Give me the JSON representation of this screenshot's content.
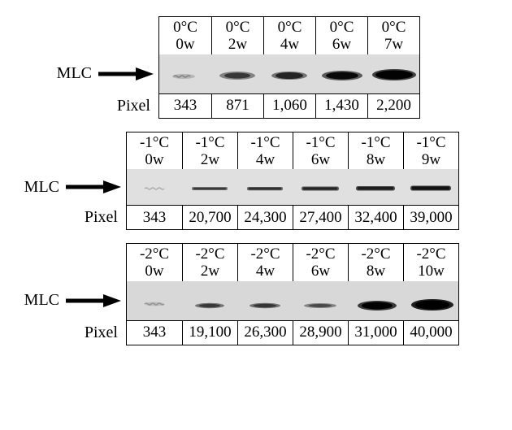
{
  "panels": [
    {
      "temp_label": "0°C",
      "weeks": [
        "0w",
        "2w",
        "4w",
        "6w",
        "7w"
      ],
      "pixel_values": [
        "343",
        "871",
        "1,060",
        "1,430",
        "2,200"
      ],
      "gel_bg": "#dcdcdc",
      "gel_height": 48,
      "left_label_width": 180,
      "lane_width": 64,
      "gel_svgs": [
        "<svg width='64' height='48'><g><ellipse cx='30' cy='27' rx='14' ry='3' fill='#7a7a7a' opacity='0.4'/><path d='M18 27 q2 -2 4 0 q2 2 4 0 q2 -2 4 0 q2 2 4 0 q2 -2 4 0' stroke='#555' stroke-width='1.5' fill='none' opacity='0.55'/></g></svg>",
        "<svg width='64' height='48'><ellipse cx='32' cy='26' rx='22' ry='5' fill='#3a3a3a' opacity='0.55'/><ellipse cx='32' cy='26' rx='16' ry='3.5' fill='#1e1e1e' opacity='0.75'/></svg>",
        "<svg width='64' height='48'><ellipse cx='32' cy='26' rx='22' ry='5' fill='#2f2f2f' opacity='0.6'/><ellipse cx='32' cy='26' rx='17' ry='4' fill='#161616' opacity='0.85'/></svg>",
        "<svg width='64' height='48'><ellipse cx='33' cy='26' rx='25' ry='6' fill='#222' opacity='0.7'/><ellipse cx='33' cy='26' rx='20' ry='4.5' fill='#000' opacity='0.9'/></svg>",
        "<svg width='64' height='48'><ellipse cx='33' cy='25' rx='27' ry='7' fill='#1a1a1a' opacity='0.8'/><ellipse cx='33' cy='25' rx='23' ry='5.5' fill='#000' opacity='0.95'/></svg>"
      ]
    },
    {
      "temp_label": "-1°C",
      "weeks": [
        "0w",
        "2w",
        "4w",
        "6w",
        "8w",
        "9w"
      ],
      "pixel_values": [
        "343",
        "20,700",
        "24,300",
        "27,400",
        "32,400",
        "39,000"
      ],
      "gel_bg": "#e0e0e0",
      "gel_height": 44,
      "left_label_width": 140,
      "lane_width": 68,
      "gel_svgs": [
        "<svg width='68' height='44'><path d='M22 24 q2 -2 4 0 q2 2 4 0 q2 -2 4 0 q2 2 4 0 q2 -2 4 0 q2 2 4 0' stroke='#777' stroke-width='1.4' fill='none' opacity='0.5'/></svg>",
        "<svg width='68' height='44'><rect x='12' y='22' width='44' height='4' rx='2' fill='#555' opacity='0.8'/><rect x='14' y='23' width='40' height='2.2' rx='1' fill='#333' opacity='0.9'/></svg>",
        "<svg width='68' height='44'><rect x='12' y='22' width='44' height='4.2' rx='2' fill='#4d4d4d' opacity='0.85'/><rect x='14' y='22.8' width='40' height='2.6' rx='1' fill='#2b2b2b' opacity='0.92'/></svg>",
        "<svg width='68' height='44'><rect x='11' y='21.5' width='46' height='5' rx='2.2' fill='#444' opacity='0.88'/><rect x='13' y='22.5' width='42' height='3' rx='1.2' fill='#222' opacity='0.94'/></svg>",
        "<svg width='68' height='44'><rect x='10' y='21' width='48' height='5.5' rx='2.4' fill='#3c3c3c' opacity='0.9'/><rect x='12' y='22' width='44' height='3.4' rx='1.3' fill='#1a1a1a' opacity='0.95'/></svg>",
        "<svg width='68' height='44'><rect x='9' y='20.5' width='50' height='6' rx='2.6' fill='#333' opacity='0.92'/><rect x='11' y='21.5' width='46' height='4' rx='1.5' fill='#111' opacity='0.97'/></svg>"
      ]
    },
    {
      "temp_label": "-2°C",
      "weeks": [
        "0w",
        "2w",
        "4w",
        "6w",
        "8w",
        "10w"
      ],
      "pixel_values": [
        "343",
        "19,100",
        "26,300",
        "28,900",
        "31,000",
        "40,000"
      ],
      "gel_bg": "#d8d8d8",
      "gel_height": 48,
      "left_label_width": 140,
      "lane_width": 68,
      "gel_svgs": [
        "<svg width='68' height='48'><path d='M22 28 q2 -2 4 0 q2 2 4 0 q2 -2 4 0 q2 2 4 0 q2 -2 4 0 q2 2 4 0' stroke='#6a6a6a' stroke-width='1.5' fill='none' opacity='0.55'/><ellipse cx='34' cy='28' rx='12' ry='2.4' fill='#888' opacity='0.35'/></svg>",
        "<svg width='68' height='48'><ellipse cx='34' cy='30' rx='18' ry='3.2' fill='#4a4a4a' opacity='0.7'/><ellipse cx='34' cy='30' rx='13' ry='2.2' fill='#2e2e2e' opacity='0.85'/></svg>",
        "<svg width='68' height='48'><ellipse cx='34' cy='30' rx='19' ry='3.2' fill='#484848' opacity='0.72'/><ellipse cx='34' cy='30' rx='14' ry='2.2' fill='#2b2b2b' opacity='0.86'/></svg>",
        "<svg width='68' height='48'><ellipse cx='34' cy='30' rx='20' ry='3' fill='#555' opacity='0.65'/><ellipse cx='34' cy='30' rx='14' ry='2' fill='#3a3a3a' opacity='0.78'/></svg>",
        "<svg width='68' height='48'><ellipse cx='36' cy='30' rx='24' ry='6' fill='#1e1e1e' opacity='0.85'/><ellipse cx='36' cy='30' rx='19' ry='4.5' fill='#000' opacity='0.96'/></svg>",
        "<svg width='68' height='48'><ellipse cx='36' cy='29' rx='26' ry='7' fill='#0f0f0f' opacity='0.92'/><ellipse cx='36' cy='29' rx='21' ry='5.5' fill='#000' opacity='0.99'/></svg>"
      ]
    }
  ],
  "mlc_label": "MLC",
  "pixel_label": "Pixel",
  "arrow_svg": "<svg width='70' height='20' viewBox='0 0 70 20'><line x1='2' y1='10' x2='48' y2='10' stroke='#000' stroke-width='5'/><polygon points='48,2 70,10 48,18' fill='#000'/></svg>",
  "font_family": "Times New Roman"
}
